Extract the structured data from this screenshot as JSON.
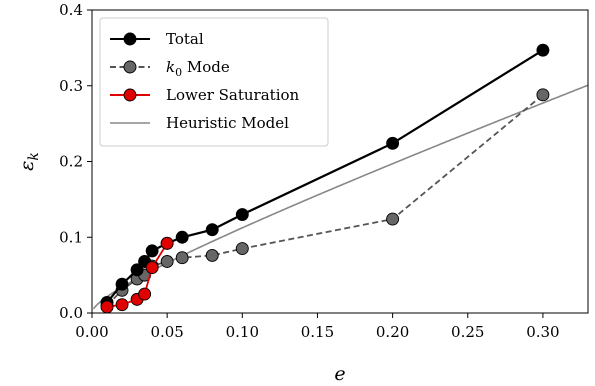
{
  "chart_data": {
    "type": "line",
    "xlabel": "e",
    "ylabel": "εk",
    "xlim": [
      0.0,
      0.33
    ],
    "ylim": [
      0.0,
      0.4
    ],
    "xticks": [
      "0.00",
      "0.05",
      "0.10",
      "0.15",
      "0.20",
      "0.25",
      "0.30"
    ],
    "xtick_values": [
      0.0,
      0.05,
      0.1,
      0.15,
      0.2,
      0.25,
      0.3
    ],
    "yticks": [
      "0.0",
      "0.1",
      "0.2",
      "0.3",
      "0.4"
    ],
    "ytick_values": [
      0.0,
      0.1,
      0.2,
      0.3,
      0.4
    ],
    "grid": false,
    "legend_position": "top-left",
    "series": [
      {
        "name": "Total",
        "color": "#000000",
        "marker_fill": "#000000",
        "line_style": "solid",
        "marker": "circle",
        "x": [
          0.01,
          0.02,
          0.03,
          0.035,
          0.04,
          0.05,
          0.06,
          0.08,
          0.1,
          0.2,
          0.3
        ],
        "y": [
          0.014,
          0.038,
          0.057,
          0.068,
          0.082,
          0.092,
          0.1,
          0.11,
          0.13,
          0.224,
          0.347
        ]
      },
      {
        "name": "k0 Mode",
        "name_parts": {
          "symbol": "k",
          "subscript": "0",
          "rest": " Mode"
        },
        "color": "#555555",
        "marker_fill": "#666666",
        "line_style": "dashed",
        "marker": "circle",
        "x": [
          0.01,
          0.02,
          0.03,
          0.035,
          0.04,
          0.05,
          0.06,
          0.08,
          0.1,
          0.2,
          0.3
        ],
        "y": [
          0.01,
          0.03,
          0.045,
          0.05,
          0.062,
          0.068,
          0.073,
          0.076,
          0.085,
          0.124,
          0.288
        ]
      },
      {
        "name": "Lower Saturation",
        "color": "#e00000",
        "marker_fill": "#e00000",
        "line_style": "solid",
        "marker": "circle",
        "x": [
          0.01,
          0.02,
          0.03,
          0.035,
          0.04,
          0.05
        ],
        "y": [
          0.008,
          0.011,
          0.018,
          0.025,
          0.06,
          0.092
        ]
      },
      {
        "name": "Heuristic Model",
        "color": "#888888",
        "line_style": "solid",
        "marker": "none",
        "model": "0.15*sqrt(e) + 0.65*e",
        "x_range": [
          0.001,
          0.33
        ]
      }
    ]
  }
}
